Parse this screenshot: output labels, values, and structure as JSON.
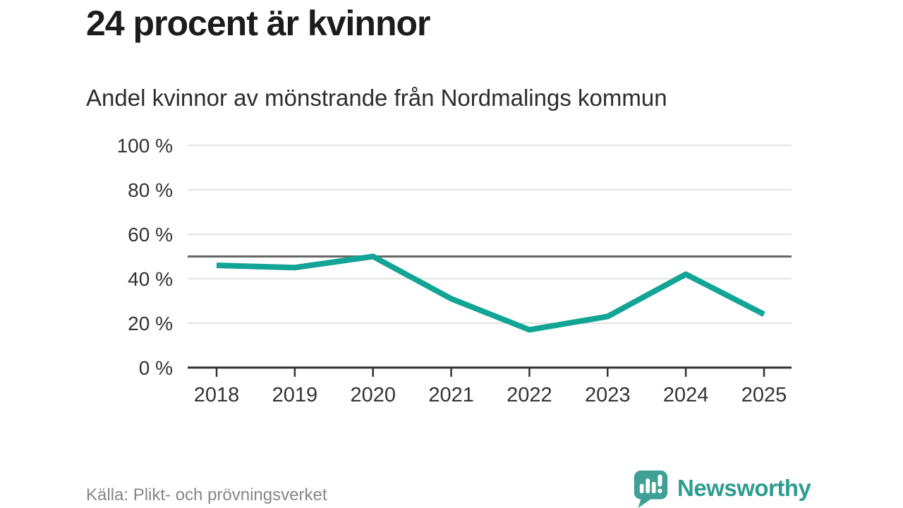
{
  "header": {
    "title": "24 procent är kvinnor",
    "subtitle": "Andel kvinnor av mönstrande från Nordmalings kommun"
  },
  "chart_data": {
    "type": "line",
    "title": "24 procent är kvinnor",
    "subtitle": "Andel kvinnor av mönstrande från Nordmalings kommun",
    "categories": [
      "2018",
      "2019",
      "2020",
      "2021",
      "2022",
      "2023",
      "2024",
      "2025"
    ],
    "values": [
      46,
      45,
      50,
      31,
      17,
      23,
      42,
      24
    ],
    "unit": "%",
    "xlabel": "",
    "ylabel": "",
    "ylim": [
      0,
      100
    ],
    "yticks": [
      0,
      20,
      40,
      60,
      80,
      100
    ],
    "ytick_suffix": " %",
    "reference_line": 50,
    "grid": true,
    "legend": "none",
    "line_color": "#12a495"
  },
  "footer": {
    "source": "Källa: Plikt- och prövningsverket",
    "brand": "Newsworthy"
  },
  "colors": {
    "accent": "#12a495",
    "brand": "#2e9c8f",
    "logo_bubble": "#3fa096",
    "grid": "#e2e2e2",
    "reference": "#666666",
    "axis": "#333333",
    "tick_label": "#333333",
    "title_text": "#1c1c1c",
    "muted_text": "#878787",
    "background": "#ffffff"
  }
}
